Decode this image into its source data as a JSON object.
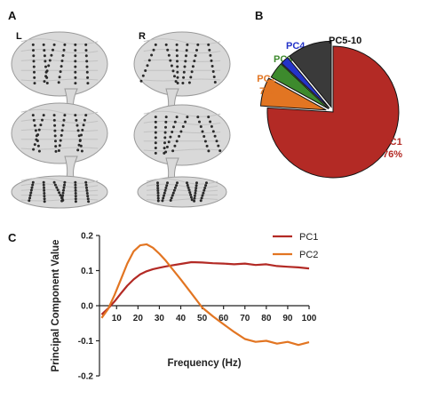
{
  "panels": {
    "a": {
      "letter": "A",
      "left_label": "L",
      "right_label": "R"
    },
    "b": {
      "letter": "B"
    },
    "c": {
      "letter": "C"
    }
  },
  "colors": {
    "pc1": "#b32a25",
    "pc2": "#e27522",
    "pc3": "#3d8a2d",
    "pc4": "#2433c8",
    "pc5_10": "#3a3a3a",
    "brain_fill": "#d9d9d9",
    "brain_stroke": "#9a9a9a",
    "electrode": "#2a2a2a"
  },
  "chart_data": [
    {
      "type": "pie",
      "slices": [
        {
          "name": "PC1",
          "label": "PC1",
          "percent_label": "76%",
          "value": 76,
          "color": "#b32a25"
        },
        {
          "name": "PC2",
          "label": "PC2",
          "percent_label": "7%",
          "value": 7,
          "color": "#e27522"
        },
        {
          "name": "PC3",
          "label": "PC3",
          "percent_label": "",
          "value": 4,
          "color": "#3d8a2d"
        },
        {
          "name": "PC4",
          "label": "PC4",
          "percent_label": "",
          "value": 2,
          "color": "#2433c8"
        },
        {
          "name": "PC5-10",
          "label": "PC5-10",
          "percent_label": "",
          "value": 11,
          "color": "#3a3a3a"
        }
      ]
    },
    {
      "type": "line",
      "xlabel": "Frequency (Hz)",
      "ylabel": "Principal Component Value",
      "xlim": [
        2,
        100
      ],
      "ylim": [
        -0.2,
        0.2
      ],
      "xticks": [
        10,
        20,
        30,
        40,
        50,
        60,
        70,
        80,
        90,
        100
      ],
      "yticks": [
        -0.2,
        -0.1,
        0.0,
        0.1,
        0.2
      ],
      "ytick_labels": [
        "-0.2",
        "-0.1",
        "0.0",
        "0.1",
        "0.2"
      ],
      "legend_position": "top-right",
      "series": [
        {
          "name": "PC1",
          "color": "#b32a25",
          "x": [
            3,
            6,
            9,
            12,
            15,
            18,
            21,
            24,
            27,
            30,
            33,
            36,
            40,
            45,
            50,
            55,
            60,
            65,
            70,
            75,
            80,
            85,
            90,
            95,
            100
          ],
          "y": [
            -0.025,
            -0.008,
            0.012,
            0.035,
            0.057,
            0.075,
            0.089,
            0.098,
            0.104,
            0.108,
            0.112,
            0.115,
            0.119,
            0.124,
            0.123,
            0.121,
            0.12,
            0.118,
            0.12,
            0.116,
            0.118,
            0.113,
            0.111,
            0.109,
            0.106
          ]
        },
        {
          "name": "PC2",
          "color": "#e27522",
          "x": [
            3,
            6,
            9,
            12,
            15,
            18,
            21,
            24,
            27,
            30,
            33,
            36,
            40,
            45,
            50,
            55,
            60,
            65,
            70,
            75,
            80,
            85,
            90,
            95,
            100
          ],
          "y": [
            -0.035,
            -0.01,
            0.03,
            0.075,
            0.12,
            0.155,
            0.172,
            0.175,
            0.165,
            0.148,
            0.128,
            0.105,
            0.075,
            0.035,
            -0.005,
            -0.03,
            -0.053,
            -0.075,
            -0.095,
            -0.103,
            -0.1,
            -0.108,
            -0.103,
            -0.112,
            -0.104
          ]
        }
      ]
    }
  ]
}
